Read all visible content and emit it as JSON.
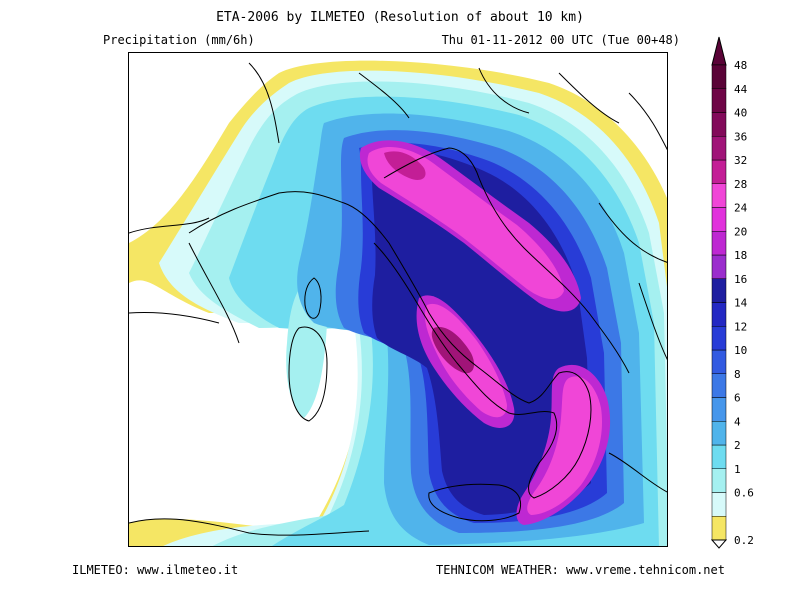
{
  "header": {
    "title": "ETA-2006 by ILMETEO (Resolution of about 10 km)",
    "variable": "Precipitation (mm/6h)",
    "datetime": "Thu 01-11-2012 00 UTC (Tue 00+48)"
  },
  "footer": {
    "left": "ILMETEO: www.ilmeteo.it",
    "right": "TEHNICOM WEATHER: www.vreme.tehnicom.net"
  },
  "legend": {
    "levels": [
      {
        "label": "0.2",
        "color": "#f5e664"
      },
      {
        "label": "0.6",
        "color": "#d7fafa"
      },
      {
        "label": "1",
        "color": "#a5f0f0"
      },
      {
        "label": "2",
        "color": "#6edcf0"
      },
      {
        "label": "4",
        "color": "#50b4eb"
      },
      {
        "label": "6",
        "color": "#4696eb"
      },
      {
        "label": "8",
        "color": "#3c78e6"
      },
      {
        "label": "10",
        "color": "#325ae1"
      },
      {
        "label": "12",
        "color": "#283cd7"
      },
      {
        "label": "14",
        "color": "#2328c3"
      },
      {
        "label": "16",
        "color": "#1e1ea0"
      },
      {
        "label": "18",
        "color": "#9b2dcd"
      },
      {
        "label": "20",
        "color": "#be28d2"
      },
      {
        "label": "24",
        "color": "#e132dc"
      },
      {
        "label": "28",
        "color": "#f046d7"
      },
      {
        "label": "32",
        "color": "#c31e96"
      },
      {
        "label": "36",
        "color": "#a01478"
      },
      {
        "label": "40",
        "color": "#820a5a"
      },
      {
        "label": "44",
        "color": "#6e0546"
      },
      {
        "label": "48",
        "color": "#5a0337"
      }
    ]
  }
}
